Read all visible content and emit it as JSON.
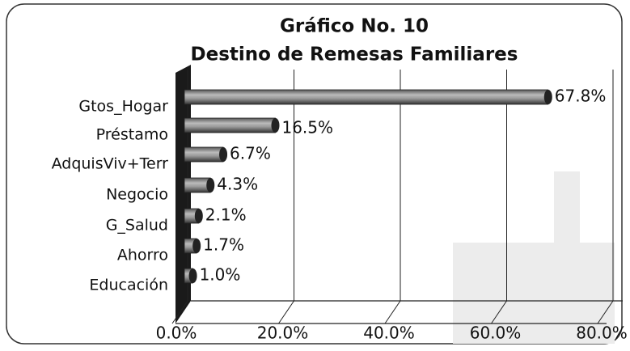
{
  "chart_data": {
    "type": "bar",
    "orientation": "horizontal",
    "title": "Gráfico No. 10",
    "subtitle": "Destino de Remesas Familiares",
    "categories": [
      "Gtos_Hogar",
      "Préstamo",
      "AdquisViv+Terr",
      "Negocio",
      "G_Salud",
      "Ahorro",
      "Educación"
    ],
    "values": [
      67.8,
      16.5,
      6.7,
      4.3,
      2.1,
      1.7,
      1.0
    ],
    "value_labels": [
      "67.8%",
      "16.5%",
      "6.7%",
      "4.3%",
      "2.1%",
      "1.7%",
      "1.0%"
    ],
    "color": "#999999",
    "xlim": [
      0,
      80
    ],
    "xticks": [
      {
        "value": 0,
        "label": "0.0%"
      },
      {
        "value": 20,
        "label": "20.0%"
      },
      {
        "value": 40,
        "label": "40.0%"
      },
      {
        "value": 60,
        "label": "60.0%"
      },
      {
        "value": 80,
        "label": "80.0%"
      }
    ],
    "grid": true
  }
}
